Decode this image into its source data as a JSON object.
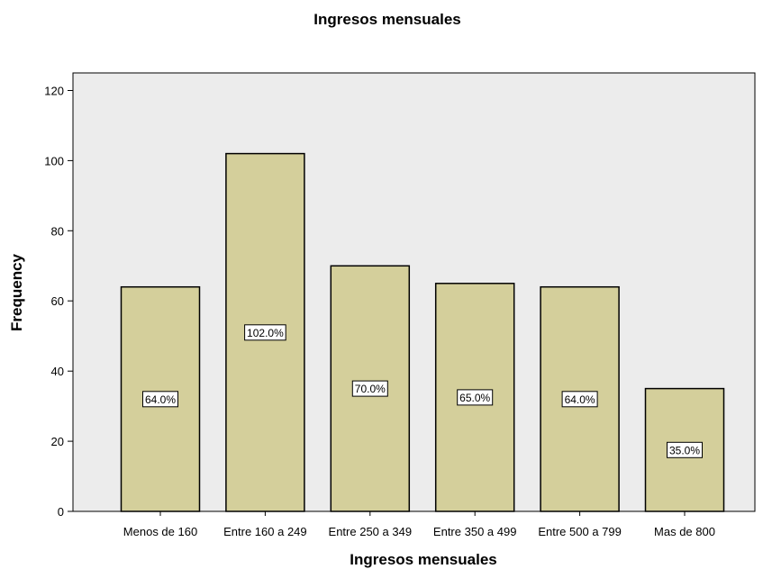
{
  "colors": {
    "plot_background": "#ececec",
    "bar_fill": "#d4cf9b",
    "bar_stroke": "#000000",
    "label_box": "#ffffff"
  },
  "chart_data": {
    "type": "bar",
    "title": "Ingresos mensuales",
    "xlabel": "Ingresos mensuales",
    "ylabel": "Frequency",
    "categories": [
      "Menos de 160",
      "Entre 160 a 249",
      "Entre 250 a 349",
      "Entre 350 a 499",
      "Entre 500 a 799",
      "Mas de 800"
    ],
    "values": [
      64,
      102,
      70,
      65,
      64,
      35
    ],
    "data_labels": [
      "64.0%",
      "102.0%",
      "70.0%",
      "65.0%",
      "64.0%",
      "35.0%"
    ],
    "ylim": [
      0,
      125
    ],
    "yticks": [
      0,
      20,
      40,
      60,
      80,
      100,
      120
    ],
    "grid": false,
    "legend": "none"
  }
}
